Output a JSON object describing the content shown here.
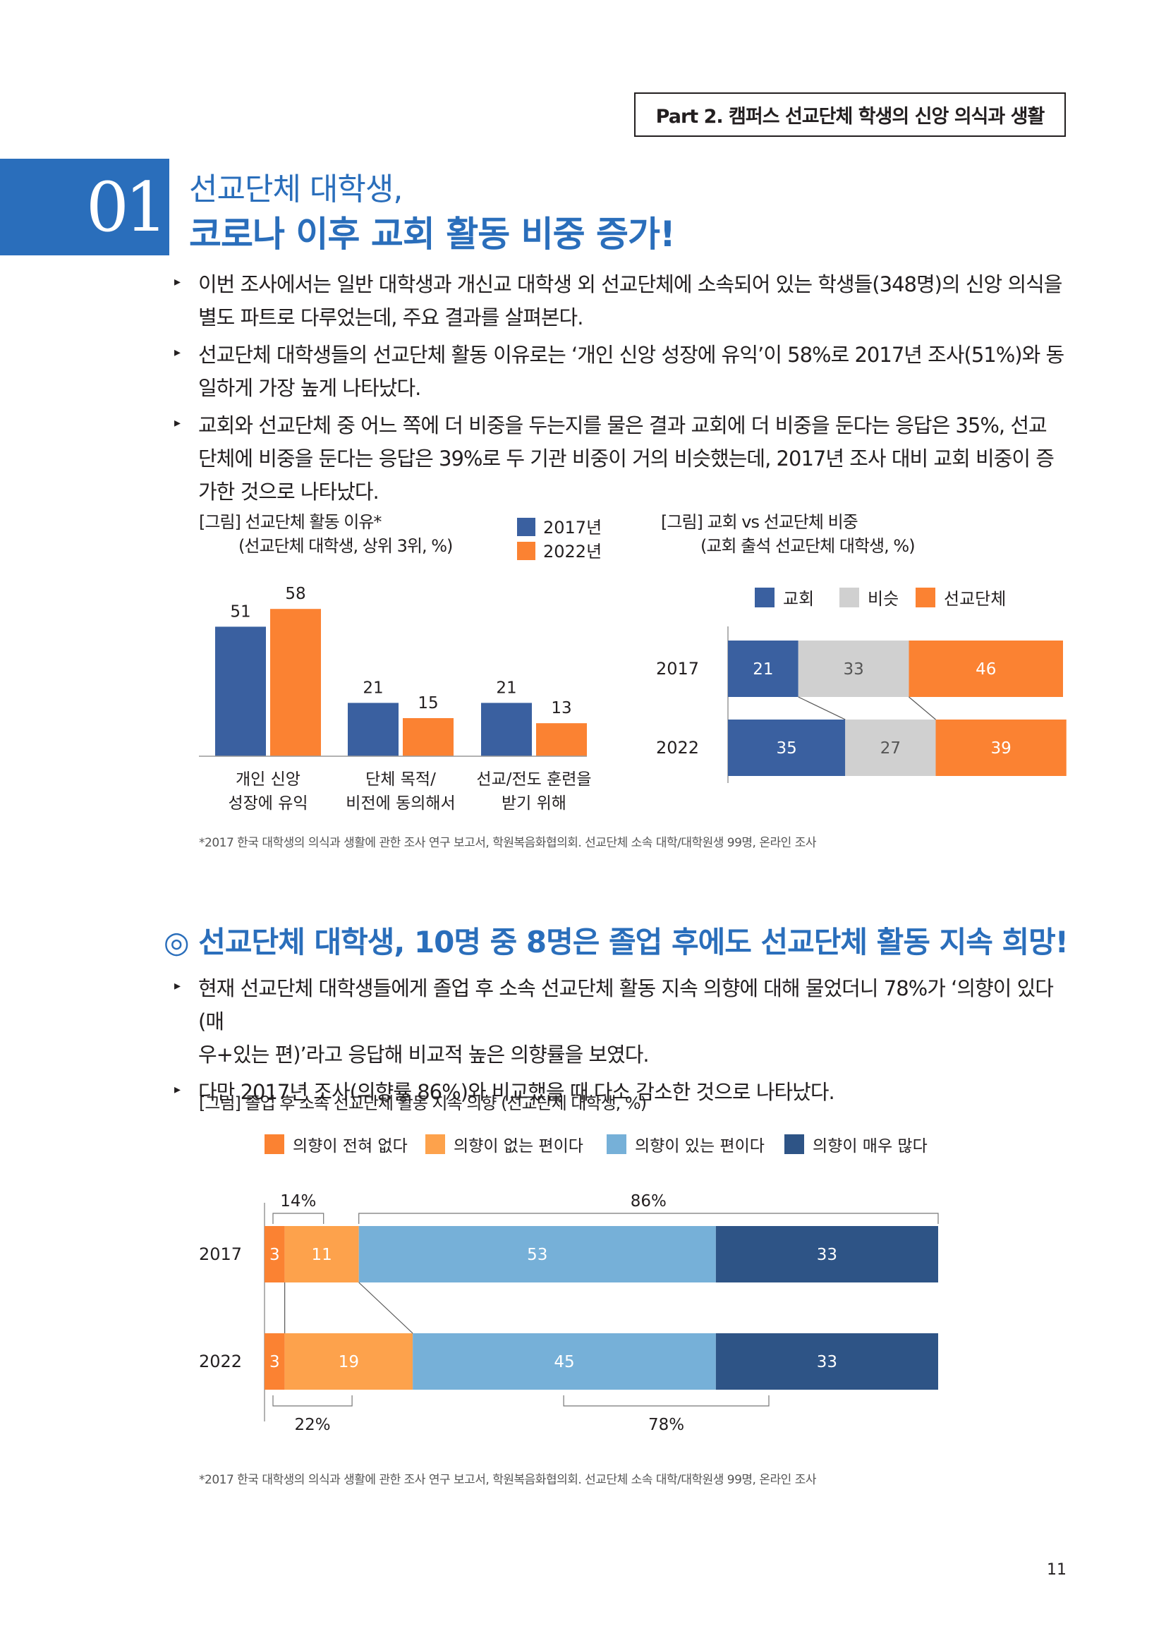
{
  "header": {
    "part_label": "Part 2. 캠퍼스 선교단체 학생의 신앙 의식과 생활"
  },
  "section1": {
    "number": "01",
    "title_line1": "선교단체 대학생,",
    "title_line2": "코로나 이후 교회 활동 비중 증가!",
    "bullets": [
      {
        "line1": "이번 조사에서는 일반 대학생과 개신교 대학생 외 선교단체에 소속되어 있는 학생들(348명)의 신앙 의식을",
        "line2": "별도 파트로 다루었는데, 주요 결과를 살펴본다."
      },
      {
        "line1": "선교단체 대학생들의 선교단체 활동 이유로는 ‘개인 신앙 성장에 유익’이 58%로 2017년 조사(51%)와 동",
        "line2": "일하게 가장 높게 나타났다."
      },
      {
        "line1": "교회와 선교단체 중 어느 쪽에 더 비중을 두는지를 물은 결과 교회에 더 비중을 둔다는 응답은 35%, 선교",
        "line2": "단체에 비중을 둔다는 응답은 39%로 두 기관 비중이 거의 비슷했는데, 2017년 조사 대비 교회 비중이 증",
        "line3": "가한 것으로 나타났다."
      }
    ],
    "fig1_caption1": "[그림] 선교단체 활동 이유*",
    "fig1_caption2": "(선교단체 대학생, 상위 3위, %)",
    "fig2_caption1": "[그림] 교회 vs 선교단체 비중",
    "fig2_caption2": "(교회 출석 선교단체 대학생, %)",
    "footnote": "*2017 한국 대학생의 의식과 생활에 관한 조사 연구 보고서, 학원복음화협의회. 선교단체 소속 대학/대학원생 99명, 온라인 조사"
  },
  "section2": {
    "title": "◎ 선교단체 대학생, 10명 중 8명은 졸업 후에도 선교단체 활동 지속 희망!",
    "bullets": [
      {
        "line1": "현재 선교단체 대학생들에게 졸업 후 소속 선교단체 활동 지속 의향에 대해 물었더니 78%가 ‘의향이 있다(매",
        "line2": "우+있는 편)’라고 응답해 비교적 높은 의향률을 보였다."
      },
      {
        "line1": "다만 2017년 조사(의향률 86%)와 비교했을 때 다소 감소한 것으로 나타났다."
      }
    ],
    "fig3_caption": "[그림] 졸업 후 소속 선교단체 활동 지속 의향 (선교단체 대학생, %)",
    "footnote": "*2017 한국 대학생의 의식과 생활에 관한 조사 연구 보고서, 학원복음화협의회. 선교단체 소속 대학/대학원생 99명, 온라인 조사"
  },
  "page_number": "11",
  "chart_data": [
    {
      "type": "bar",
      "categories": [
        [
          "개인 신앙",
          "성장에 유익"
        ],
        [
          "단체 목적/",
          "비전에 동의해서"
        ],
        [
          "선교/전도 훈련을",
          "받기 위해"
        ]
      ],
      "series": [
        {
          "name": "2017년",
          "values": [
            51,
            21,
            21
          ],
          "color": "#3a60a0"
        },
        {
          "name": "2022년",
          "values": [
            58,
            15,
            13
          ],
          "color": "#fb8232"
        }
      ],
      "ylim": [
        0,
        65
      ],
      "legend": "top-right"
    },
    {
      "type": "bar",
      "stacked": true,
      "orientation": "horizontal",
      "categories": [
        "2017",
        "2022"
      ],
      "series": [
        {
          "name": "교회",
          "values": [
            21,
            35
          ],
          "color": "#3a60a0"
        },
        {
          "name": "비슷",
          "values": [
            33,
            27
          ],
          "color": "#d0d0d0"
        },
        {
          "name": "선교단체",
          "values": [
            46,
            39
          ],
          "color": "#fb8232"
        }
      ],
      "legend": "top"
    },
    {
      "type": "bar",
      "stacked": true,
      "orientation": "horizontal",
      "categories": [
        "2017",
        "2022"
      ],
      "series": [
        {
          "name": "의향이 전혀 없다",
          "values": [
            3,
            3
          ],
          "color": "#fb8232"
        },
        {
          "name": "의향이 없는 편이다",
          "values": [
            11,
            19
          ],
          "color": "#fda24c"
        },
        {
          "name": "의향이 있는 편이다",
          "values": [
            53,
            45
          ],
          "color": "#76b0d8"
        },
        {
          "name": "의향이 매우 많다",
          "values": [
            33,
            33
          ],
          "color": "#2e5486"
        }
      ],
      "brackets": {
        "2017_negative": "14%",
        "2017_positive": "86%",
        "2022_negative": "22%",
        "2022_positive": "78%"
      },
      "legend": "top"
    }
  ]
}
